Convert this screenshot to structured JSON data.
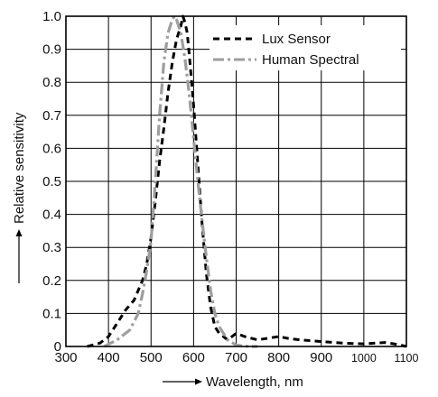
{
  "chart_data": {
    "type": "line",
    "title": "",
    "xlabel": "Wavelength, nm",
    "ylabel": "Relative sensitivity",
    "xlim": [
      300,
      1100
    ],
    "ylim": [
      0,
      1.0
    ],
    "x_ticks": [
      "300",
      "400",
      "500",
      "600",
      "700",
      "800",
      "900",
      "1000",
      "1100"
    ],
    "y_ticks": [
      "0",
      "0.1",
      "0.2",
      "0.3",
      "0.4",
      "0.5",
      "0.6",
      "0.7",
      "0.8",
      "0.9",
      "1.0"
    ],
    "grid": true,
    "legend_position": "top-right",
    "series": [
      {
        "name": "Lux Sensor",
        "style": "dashed",
        "color": "#000000",
        "x": [
          350,
          380,
          400,
          420,
          440,
          460,
          480,
          490,
          500,
          510,
          520,
          530,
          540,
          550,
          560,
          570,
          575,
          580,
          585,
          590,
          600,
          610,
          620,
          630,
          640,
          650,
          660,
          670,
          680,
          700,
          720,
          750,
          800,
          820,
          850,
          900,
          950,
          1000,
          1050,
          1080,
          1100
        ],
        "y": [
          0.0,
          0.01,
          0.03,
          0.07,
          0.11,
          0.14,
          0.2,
          0.25,
          0.33,
          0.44,
          0.56,
          0.66,
          0.77,
          0.86,
          0.93,
          0.97,
          1.0,
          0.98,
          0.95,
          0.88,
          0.73,
          0.55,
          0.37,
          0.22,
          0.12,
          0.06,
          0.04,
          0.03,
          0.02,
          0.04,
          0.03,
          0.02,
          0.03,
          0.025,
          0.02,
          0.015,
          0.01,
          0.008,
          0.012,
          0.006,
          0.0
        ]
      },
      {
        "name": "Human Spectral",
        "style": "dash-dot",
        "color": "#9e9e9e",
        "x": [
          390,
          420,
          450,
          470,
          480,
          490,
          500,
          510,
          520,
          530,
          540,
          550,
          555,
          560,
          570,
          580,
          590,
          600,
          610,
          620,
          630,
          640,
          650,
          660,
          680,
          700,
          730,
          750
        ],
        "y": [
          0.0,
          0.02,
          0.05,
          0.1,
          0.16,
          0.23,
          0.32,
          0.5,
          0.7,
          0.86,
          0.95,
          0.99,
          1.0,
          0.99,
          0.95,
          0.87,
          0.76,
          0.63,
          0.5,
          0.38,
          0.27,
          0.17,
          0.1,
          0.06,
          0.02,
          0.004,
          0.0,
          0.0
        ]
      }
    ]
  }
}
